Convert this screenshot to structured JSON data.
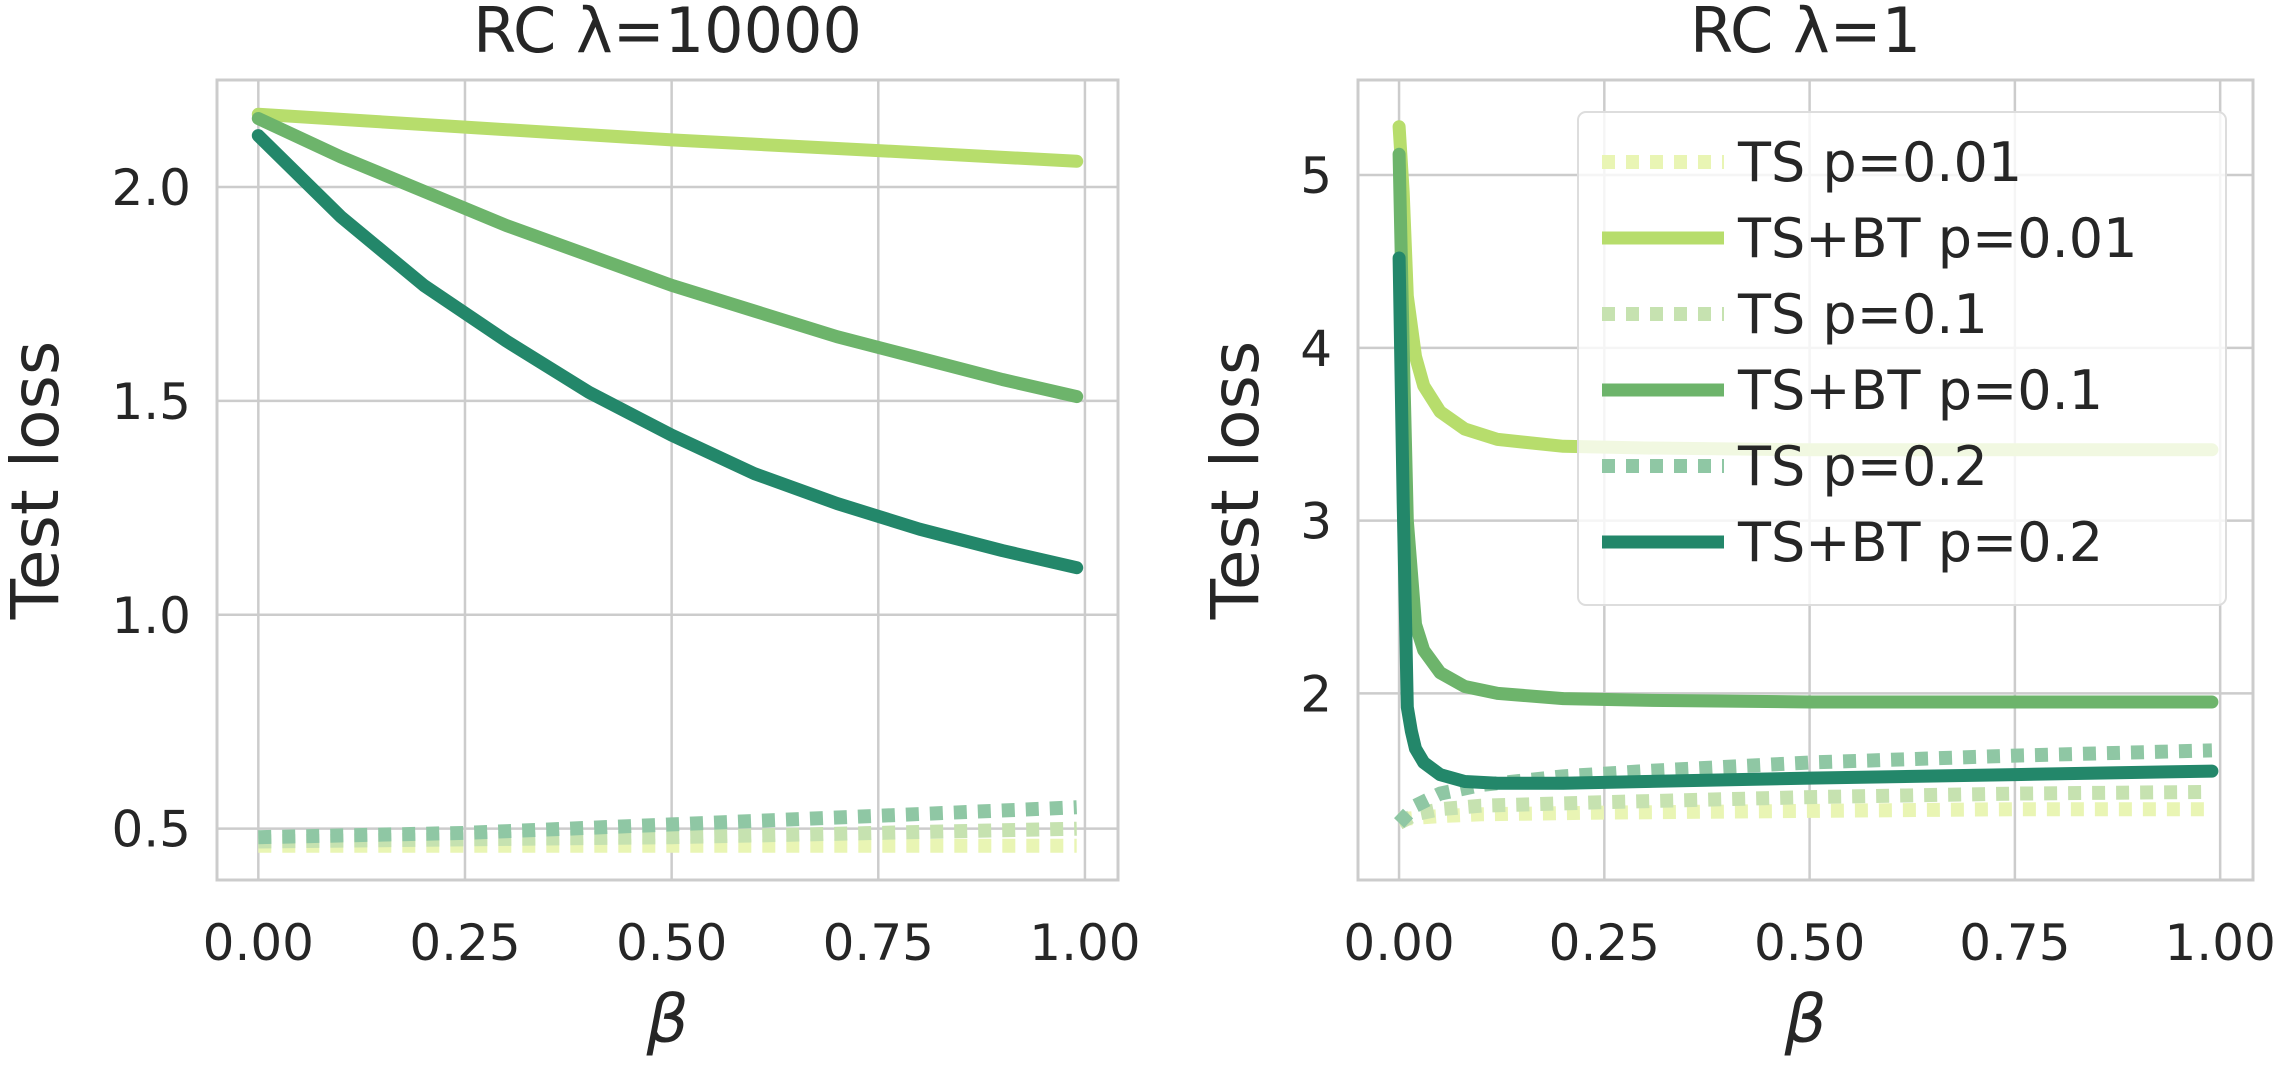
{
  "chart_data": [
    {
      "type": "line",
      "title": "RC λ=10000",
      "xlabel": "β",
      "ylabel": "Test loss",
      "xlim": [
        -0.05,
        1.04
      ],
      "ylim": [
        0.38,
        2.25
      ],
      "xticks": [
        0.0,
        0.25,
        0.5,
        0.75,
        1.0
      ],
      "xtick_labels": [
        "0.00",
        "0.25",
        "0.50",
        "0.75",
        "1.00"
      ],
      "yticks": [
        0.5,
        1.0,
        1.5,
        2.0
      ],
      "ytick_labels": [
        "0.5",
        "1.0",
        "1.5",
        "2.0"
      ],
      "grid": true,
      "series": [
        {
          "name": "TS p=0.01",
          "style": "dotted",
          "color": "#e9f5b4",
          "x": [
            0.0,
            0.25,
            0.5,
            0.75,
            0.99
          ],
          "y": [
            0.46,
            0.46,
            0.46,
            0.46,
            0.46
          ]
        },
        {
          "name": "TS+BT p=0.01",
          "style": "solid",
          "color": "#b7dd6c",
          "x": [
            0.0,
            0.25,
            0.5,
            0.75,
            0.99
          ],
          "y": [
            2.17,
            2.14,
            2.11,
            2.085,
            2.06
          ]
        },
        {
          "name": "TS p=0.1",
          "style": "dotted",
          "color": "#c6e2b0",
          "x": [
            0.0,
            0.25,
            0.5,
            0.75,
            0.99
          ],
          "y": [
            0.47,
            0.475,
            0.48,
            0.49,
            0.5
          ]
        },
        {
          "name": "TS+BT p=0.1",
          "style": "solid",
          "color": "#6db46b",
          "x": [
            0.0,
            0.1,
            0.2,
            0.3,
            0.4,
            0.5,
            0.6,
            0.7,
            0.8,
            0.9,
            0.99
          ],
          "y": [
            2.16,
            2.07,
            1.99,
            1.91,
            1.84,
            1.77,
            1.71,
            1.65,
            1.6,
            1.55,
            1.51
          ]
        },
        {
          "name": "TS p=0.2",
          "style": "dotted",
          "color": "#8fc7a4",
          "x": [
            0.0,
            0.25,
            0.5,
            0.75,
            0.99
          ],
          "y": [
            0.48,
            0.49,
            0.51,
            0.53,
            0.55
          ]
        },
        {
          "name": "TS+BT p=0.2",
          "style": "solid",
          "color": "#23876a",
          "x": [
            0.0,
            0.1,
            0.2,
            0.3,
            0.4,
            0.5,
            0.6,
            0.7,
            0.8,
            0.9,
            0.99
          ],
          "y": [
            2.12,
            1.93,
            1.77,
            1.64,
            1.52,
            1.42,
            1.33,
            1.26,
            1.2,
            1.15,
            1.11
          ]
        }
      ]
    },
    {
      "type": "line",
      "title": "RC λ=1",
      "xlabel": "β",
      "ylabel": "Test loss",
      "xlim": [
        -0.05,
        1.04
      ],
      "ylim": [
        0.92,
        5.55
      ],
      "xticks": [
        0.0,
        0.25,
        0.5,
        0.75,
        1.0
      ],
      "xtick_labels": [
        "0.00",
        "0.25",
        "0.50",
        "0.75",
        "1.00"
      ],
      "yticks": [
        2,
        3,
        4,
        5
      ],
      "ytick_labels": [
        "2",
        "3",
        "4",
        "5"
      ],
      "grid": true,
      "legend_position": "upper right",
      "series": [
        {
          "name": "TS p=0.01",
          "style": "dotted",
          "color": "#e9f5b4",
          "x": [
            0.0,
            0.02,
            0.05,
            0.1,
            0.25,
            0.5,
            0.75,
            0.99
          ],
          "y": [
            1.27,
            1.28,
            1.29,
            1.3,
            1.31,
            1.32,
            1.33,
            1.33
          ]
        },
        {
          "name": "TS+BT p=0.01",
          "style": "solid",
          "color": "#b7dd6c",
          "x": [
            0.0,
            0.005,
            0.01,
            0.02,
            0.03,
            0.05,
            0.08,
            0.12,
            0.2,
            0.3,
            0.5,
            0.75,
            0.99
          ],
          "y": [
            5.28,
            4.9,
            4.3,
            3.95,
            3.78,
            3.63,
            3.53,
            3.47,
            3.43,
            3.42,
            3.41,
            3.41,
            3.41
          ]
        },
        {
          "name": "TS p=0.1",
          "style": "dotted",
          "color": "#c6e2b0",
          "x": [
            0.0,
            0.02,
            0.05,
            0.1,
            0.25,
            0.5,
            0.75,
            0.99
          ],
          "y": [
            1.25,
            1.3,
            1.33,
            1.35,
            1.37,
            1.4,
            1.42,
            1.43
          ]
        },
        {
          "name": "TS+BT p=0.1",
          "style": "solid",
          "color": "#6db46b",
          "x": [
            0.0,
            0.005,
            0.01,
            0.015,
            0.02,
            0.03,
            0.05,
            0.08,
            0.12,
            0.2,
            0.3,
            0.5,
            0.75,
            0.99
          ],
          "y": [
            5.12,
            4.0,
            3.0,
            2.7,
            2.4,
            2.25,
            2.12,
            2.04,
            2.0,
            1.97,
            1.96,
            1.95,
            1.95,
            1.95
          ]
        },
        {
          "name": "TS p=0.2",
          "style": "dotted",
          "color": "#8fc7a4",
          "x": [
            0.0,
            0.02,
            0.05,
            0.1,
            0.2,
            0.3,
            0.5,
            0.75,
            0.99
          ],
          "y": [
            1.25,
            1.35,
            1.42,
            1.47,
            1.52,
            1.55,
            1.6,
            1.64,
            1.67
          ]
        },
        {
          "name": "TS+BT p=0.2",
          "style": "solid",
          "color": "#23876a",
          "x": [
            0.0,
            0.005,
            0.01,
            0.015,
            0.02,
            0.03,
            0.05,
            0.08,
            0.12,
            0.2,
            0.3,
            0.5,
            0.75,
            0.99
          ],
          "y": [
            4.52,
            3.1,
            1.92,
            1.78,
            1.68,
            1.6,
            1.53,
            1.49,
            1.48,
            1.48,
            1.49,
            1.51,
            1.53,
            1.55
          ]
        }
      ]
    }
  ]
}
